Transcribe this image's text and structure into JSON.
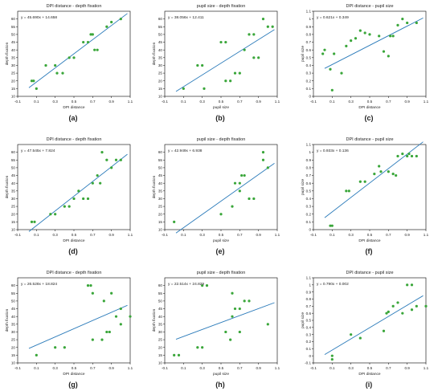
{
  "figure": {
    "panel_captions": [
      "(a)",
      "(b)",
      "(c)",
      "(d)",
      "(e)",
      "(f)",
      "(g)",
      "(h)",
      "(i)"
    ]
  },
  "colors": {
    "point": "#3aa63a",
    "line": "#2b7bba",
    "axis": "#000000",
    "text": "#222222"
  },
  "chart_data": [
    {
      "type": "scatter",
      "title": "DPI distance - depth fixation",
      "xlabel": "DPI distance",
      "ylabel": "depth fixation",
      "equation": "y = 45.690x + 14.658",
      "fit": {
        "slope": 45.69,
        "intercept": 14.658
      },
      "xlim": [
        -0.1,
        1.1
      ],
      "ylim": [
        10,
        65
      ],
      "xticks": [
        "-0.1",
        "0.1",
        "0.3",
        "0.5",
        "0.7",
        "0.9",
        "1.1"
      ],
      "yticks": [
        "10",
        "15",
        "20",
        "25",
        "30",
        "35",
        "40",
        "45",
        "50",
        "55",
        "60"
      ],
      "points": [
        [
          0.05,
          20
        ],
        [
          0.07,
          20
        ],
        [
          0.1,
          15
        ],
        [
          0.2,
          30
        ],
        [
          0.3,
          30
        ],
        [
          0.32,
          25
        ],
        [
          0.38,
          25
        ],
        [
          0.45,
          35
        ],
        [
          0.5,
          35
        ],
        [
          0.6,
          45
        ],
        [
          0.65,
          45
        ],
        [
          0.68,
          50
        ],
        [
          0.7,
          50
        ],
        [
          0.72,
          40
        ],
        [
          0.75,
          40
        ],
        [
          0.85,
          55
        ],
        [
          0.9,
          58
        ],
        [
          1.0,
          60
        ]
      ]
    },
    {
      "type": "scatter",
      "title": "pupil size - depth fixation",
      "xlabel": "pupil size",
      "ylabel": "depth fixation",
      "equation": "y = 38.056x + 12.411",
      "fit": {
        "slope": 38.056,
        "intercept": 12.411
      },
      "xlim": [
        -0.1,
        1.1
      ],
      "ylim": [
        10,
        65
      ],
      "xticks": [
        "-0.1",
        "0.1",
        "0.3",
        "0.5",
        "0.7",
        "0.9",
        "1.1"
      ],
      "yticks": [
        "10",
        "15",
        "20",
        "25",
        "30",
        "35",
        "40",
        "45",
        "50",
        "55",
        "60"
      ],
      "points": [
        [
          0.1,
          15
        ],
        [
          0.25,
          30
        ],
        [
          0.3,
          30
        ],
        [
          0.32,
          15
        ],
        [
          0.5,
          45
        ],
        [
          0.55,
          45
        ],
        [
          0.55,
          20
        ],
        [
          0.6,
          20
        ],
        [
          0.65,
          25
        ],
        [
          0.7,
          25
        ],
        [
          0.75,
          40
        ],
        [
          0.8,
          50
        ],
        [
          0.85,
          35
        ],
        [
          0.85,
          50
        ],
        [
          0.9,
          35
        ],
        [
          0.95,
          60
        ],
        [
          1.0,
          55
        ],
        [
          1.05,
          55
        ]
      ]
    },
    {
      "type": "scatter",
      "title": "DPI distance - pupil size",
      "xlabel": "DPI distance",
      "ylabel": "pupil size",
      "equation": "y = 0.621x + 0.349",
      "fit": {
        "slope": 0.621,
        "intercept": 0.349
      },
      "xlim": [
        -0.1,
        1.1
      ],
      "ylim": [
        0,
        1.1
      ],
      "xticks": [
        "-0.1",
        "0.1",
        "0.3",
        "0.5",
        "0.7",
        "0.9",
        "1.1"
      ],
      "yticks": [
        "0",
        "0.1",
        "0.2",
        "0.3",
        "0.4",
        "0.5",
        "0.6",
        "0.7",
        "0.8",
        "0.9",
        "1",
        "1.1"
      ],
      "points": [
        [
          0.0,
          0.55
        ],
        [
          0.02,
          0.6
        ],
        [
          0.08,
          0.35
        ],
        [
          0.1,
          0.08
        ],
        [
          0.12,
          0.55
        ],
        [
          0.2,
          0.3
        ],
        [
          0.25,
          0.65
        ],
        [
          0.3,
          0.72
        ],
        [
          0.35,
          0.75
        ],
        [
          0.4,
          0.85
        ],
        [
          0.45,
          0.82
        ],
        [
          0.5,
          0.8
        ],
        [
          0.6,
          0.78
        ],
        [
          0.65,
          0.58
        ],
        [
          0.7,
          0.52
        ],
        [
          0.72,
          0.78
        ],
        [
          0.75,
          0.78
        ],
        [
          0.8,
          0.92
        ],
        [
          0.85,
          1.0
        ],
        [
          0.9,
          0.95
        ],
        [
          1.0,
          0.95
        ]
      ]
    },
    {
      "type": "scatter",
      "title": "DPI distance - depth fixation",
      "xlabel": "DPI distance",
      "ylabel": "depth fixation",
      "equation": "y = 47.545x + 7.824",
      "fit": {
        "slope": 47.545,
        "intercept": 7.824
      },
      "xlim": [
        -0.1,
        1.1
      ],
      "ylim": [
        10,
        65
      ],
      "xticks": [
        "-0.1",
        "0.1",
        "0.3",
        "0.5",
        "0.7",
        "0.9",
        "1.1"
      ],
      "yticks": [
        "10",
        "15",
        "20",
        "25",
        "30",
        "35",
        "40",
        "45",
        "50",
        "55",
        "60"
      ],
      "points": [
        [
          0.05,
          15
        ],
        [
          0.08,
          15
        ],
        [
          0.25,
          20
        ],
        [
          0.3,
          20
        ],
        [
          0.4,
          25
        ],
        [
          0.45,
          25
        ],
        [
          0.5,
          30
        ],
        [
          0.55,
          35
        ],
        [
          0.6,
          30
        ],
        [
          0.65,
          30
        ],
        [
          0.7,
          40
        ],
        [
          0.75,
          45
        ],
        [
          0.78,
          40
        ],
        [
          0.8,
          60
        ],
        [
          0.85,
          55
        ],
        [
          0.9,
          50
        ],
        [
          0.95,
          55
        ],
        [
          1.0,
          55
        ]
      ]
    },
    {
      "type": "scatter",
      "title": "pupil size - depth fixation",
      "xlabel": "pupil size",
      "ylabel": "depth fixation",
      "equation": "y = 42.949x + 6.938",
      "fit": {
        "slope": 42.949,
        "intercept": 6.938
      },
      "xlim": [
        -0.1,
        1.1
      ],
      "ylim": [
        10,
        65
      ],
      "xticks": [
        "-0.1",
        "0.1",
        "0.3",
        "0.5",
        "0.7",
        "0.9",
        "1.1"
      ],
      "yticks": [
        "10",
        "15",
        "20",
        "25",
        "30",
        "35",
        "40",
        "45",
        "50",
        "55",
        "60"
      ],
      "points": [
        [
          0.0,
          15
        ],
        [
          0.5,
          20
        ],
        [
          0.62,
          25
        ],
        [
          0.65,
          40
        ],
        [
          0.7,
          35
        ],
        [
          0.7,
          40
        ],
        [
          0.72,
          45
        ],
        [
          0.75,
          45
        ],
        [
          0.8,
          30
        ],
        [
          0.85,
          30
        ],
        [
          0.95,
          60
        ],
        [
          0.95,
          55
        ],
        [
          1.0,
          50
        ]
      ]
    },
    {
      "type": "scatter",
      "title": "DPI distance - pupil size",
      "xlabel": "DPI distance",
      "ylabel": "pupil size",
      "equation": "y = 0.933x + 0.136",
      "fit": {
        "slope": 0.933,
        "intercept": 0.136
      },
      "xlim": [
        -0.1,
        1.1
      ],
      "ylim": [
        0,
        1.1
      ],
      "xticks": [
        "-0.1",
        "0.1",
        "0.3",
        "0.5",
        "0.7",
        "0.9",
        "1.1"
      ],
      "yticks": [
        "0",
        "0.1",
        "0.2",
        "0.3",
        "0.4",
        "0.5",
        "0.6",
        "0.7",
        "0.8",
        "0.9",
        "1",
        "1.1"
      ],
      "points": [
        [
          0.08,
          0.05
        ],
        [
          0.1,
          0.05
        ],
        [
          0.25,
          0.5
        ],
        [
          0.28,
          0.5
        ],
        [
          0.4,
          0.62
        ],
        [
          0.45,
          0.62
        ],
        [
          0.55,
          0.72
        ],
        [
          0.6,
          0.82
        ],
        [
          0.62,
          0.75
        ],
        [
          0.7,
          0.75
        ],
        [
          0.75,
          0.72
        ],
        [
          0.78,
          0.7
        ],
        [
          0.8,
          0.95
        ],
        [
          0.85,
          0.98
        ],
        [
          0.9,
          0.95
        ],
        [
          0.92,
          0.98
        ],
        [
          0.95,
          0.95
        ],
        [
          1.0,
          0.95
        ]
      ]
    },
    {
      "type": "scatter",
      "title": "DPI distance - depth fixation",
      "xlabel": "DPI distance",
      "ylabel": "depth fixation",
      "equation": "y = 26.528x + 18.824",
      "fit": {
        "slope": 26.528,
        "intercept": 18.824
      },
      "xlim": [
        -0.1,
        1.1
      ],
      "ylim": [
        10,
        65
      ],
      "xticks": [
        "-0.1",
        "0.1",
        "0.3",
        "0.5",
        "0.7",
        "0.9",
        "1.1"
      ],
      "yticks": [
        "10",
        "15",
        "20",
        "25",
        "30",
        "35",
        "40",
        "45",
        "50",
        "55",
        "60"
      ],
      "points": [
        [
          0.1,
          15
        ],
        [
          0.3,
          20
        ],
        [
          0.4,
          20
        ],
        [
          0.65,
          60
        ],
        [
          0.68,
          60
        ],
        [
          0.7,
          55
        ],
        [
          0.7,
          25
        ],
        [
          0.8,
          25
        ],
        [
          0.82,
          50
        ],
        [
          0.85,
          30
        ],
        [
          0.88,
          30
        ],
        [
          0.9,
          55
        ],
        [
          0.95,
          40
        ],
        [
          1.0,
          45
        ],
        [
          1.0,
          35
        ],
        [
          1.1,
          40
        ]
      ]
    },
    {
      "type": "scatter",
      "title": "pupil size - depth fixation",
      "xlabel": "pupil size",
      "ylabel": "depth fixation",
      "equation": "y = 22.514x + 24.829",
      "fit": {
        "slope": 22.514,
        "intercept": 24.829
      },
      "xlim": [
        -0.1,
        1.1
      ],
      "ylim": [
        10,
        65
      ],
      "xticks": [
        "-0.1",
        "0.1",
        "0.3",
        "0.5",
        "0.7",
        "0.9",
        "1.1"
      ],
      "yticks": [
        "10",
        "15",
        "20",
        "25",
        "30",
        "35",
        "40",
        "45",
        "50",
        "55",
        "60"
      ],
      "points": [
        [
          0.0,
          15
        ],
        [
          0.05,
          15
        ],
        [
          0.25,
          20
        ],
        [
          0.3,
          20
        ],
        [
          0.3,
          60
        ],
        [
          0.35,
          60
        ],
        [
          0.55,
          30
        ],
        [
          0.6,
          25
        ],
        [
          0.62,
          55
        ],
        [
          0.62,
          40
        ],
        [
          0.65,
          45
        ],
        [
          0.7,
          45
        ],
        [
          0.7,
          30
        ],
        [
          0.75,
          50
        ],
        [
          0.8,
          50
        ],
        [
          1.0,
          35
        ]
      ]
    },
    {
      "type": "scatter",
      "title": "DPI distance - pupil size",
      "xlabel": "DPI distance",
      "ylabel": "pupil size",
      "equation": "y = 0.790x + 0.002",
      "fit": {
        "slope": 0.79,
        "intercept": 0.002
      },
      "xlim": [
        -0.1,
        1.1
      ],
      "ylim": [
        -0.1,
        1.1
      ],
      "xticks": [
        "-0.1",
        "0.1",
        "0.3",
        "0.5",
        "0.7",
        "0.9",
        "1.1"
      ],
      "yticks": [
        "-0.1",
        "0",
        "0.1",
        "0.2",
        "0.3",
        "0.4",
        "0.5",
        "0.6",
        "0.7",
        "0.8",
        "0.9",
        "1",
        "1.1"
      ],
      "points": [
        [
          0.1,
          0.0
        ],
        [
          0.1,
          -0.05
        ],
        [
          0.3,
          0.3
        ],
        [
          0.4,
          0.25
        ],
        [
          0.65,
          0.35
        ],
        [
          0.68,
          0.6
        ],
        [
          0.7,
          0.62
        ],
        [
          0.75,
          0.7
        ],
        [
          0.8,
          0.75
        ],
        [
          0.85,
          0.6
        ],
        [
          0.9,
          1.0
        ],
        [
          0.95,
          1.0
        ],
        [
          0.95,
          0.65
        ],
        [
          1.0,
          0.7
        ],
        [
          1.1,
          0.7
        ]
      ]
    }
  ]
}
